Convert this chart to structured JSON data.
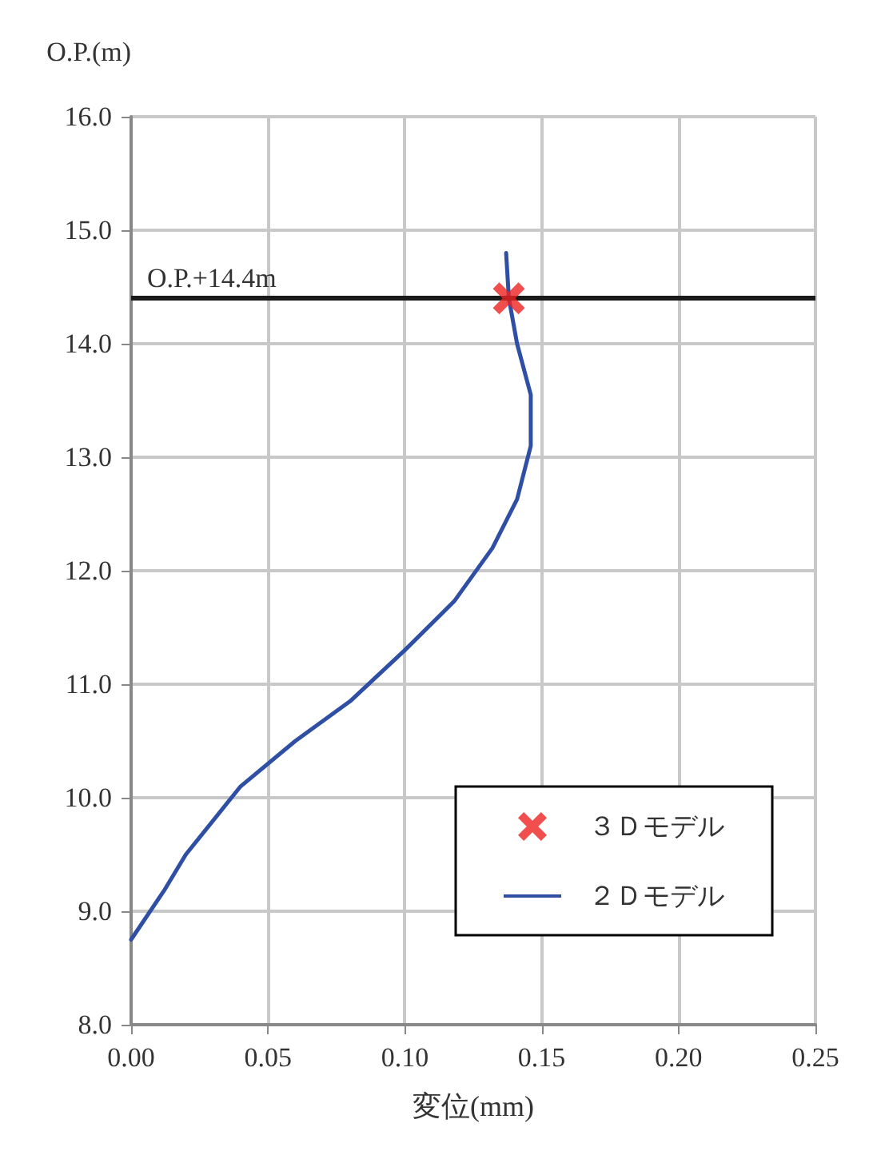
{
  "chart_data": {
    "type": "line",
    "xlabel": "変位(mm)",
    "ylabel": "O.P.(m)",
    "xlim": [
      0,
      0.25
    ],
    "xticks": [
      {
        "value": 0,
        "label": "0.00"
      },
      {
        "value": 0.05,
        "label": "0.05"
      },
      {
        "value": 0.1,
        "label": "0.10"
      },
      {
        "value": 0.15,
        "label": "0.15"
      },
      {
        "value": 0.2,
        "label": "0.20"
      },
      {
        "value": 0.25,
        "label": "0.25"
      }
    ],
    "ylim": [
      8,
      16
    ],
    "yticks": [
      {
        "value": 8,
        "label": "8.0"
      },
      {
        "value": 9,
        "label": "9.0"
      },
      {
        "value": 10,
        "label": "10.0"
      },
      {
        "value": 11,
        "label": "11.0"
      },
      {
        "value": 12,
        "label": "12.0"
      },
      {
        "value": 13,
        "label": "13.0"
      },
      {
        "value": 14,
        "label": "14.0"
      },
      {
        "value": 15,
        "label": "15.0"
      },
      {
        "value": 16,
        "label": "16.0"
      }
    ],
    "grid": true,
    "legend": "bottom right",
    "ref_lines": [
      {
        "axis": "y",
        "value": 14.4,
        "label": "O.P.+14.4m",
        "color": "#1a1a1a"
      }
    ],
    "series": [
      {
        "name": "３Ｄモデル",
        "type": "scatter",
        "marker": "cross",
        "color": "#ee2222",
        "x": [
          0.138
        ],
        "values": [
          14.4
        ]
      },
      {
        "name": "２Ｄモデル",
        "marker": "none",
        "color": "#2e4fa3",
        "x": [
          0,
          0.012,
          0.02,
          0.04,
          0.06,
          0.08,
          0.1,
          0.118,
          0.132,
          0.141,
          0.146,
          0.146,
          0.141,
          0.138,
          0.137
        ],
        "values": [
          8.75,
          9.18,
          9.5,
          10.1,
          10.5,
          10.85,
          11.3,
          11.73,
          12.2,
          12.63,
          13.1,
          13.55,
          14.0,
          14.4,
          14.8
        ]
      }
    ]
  }
}
